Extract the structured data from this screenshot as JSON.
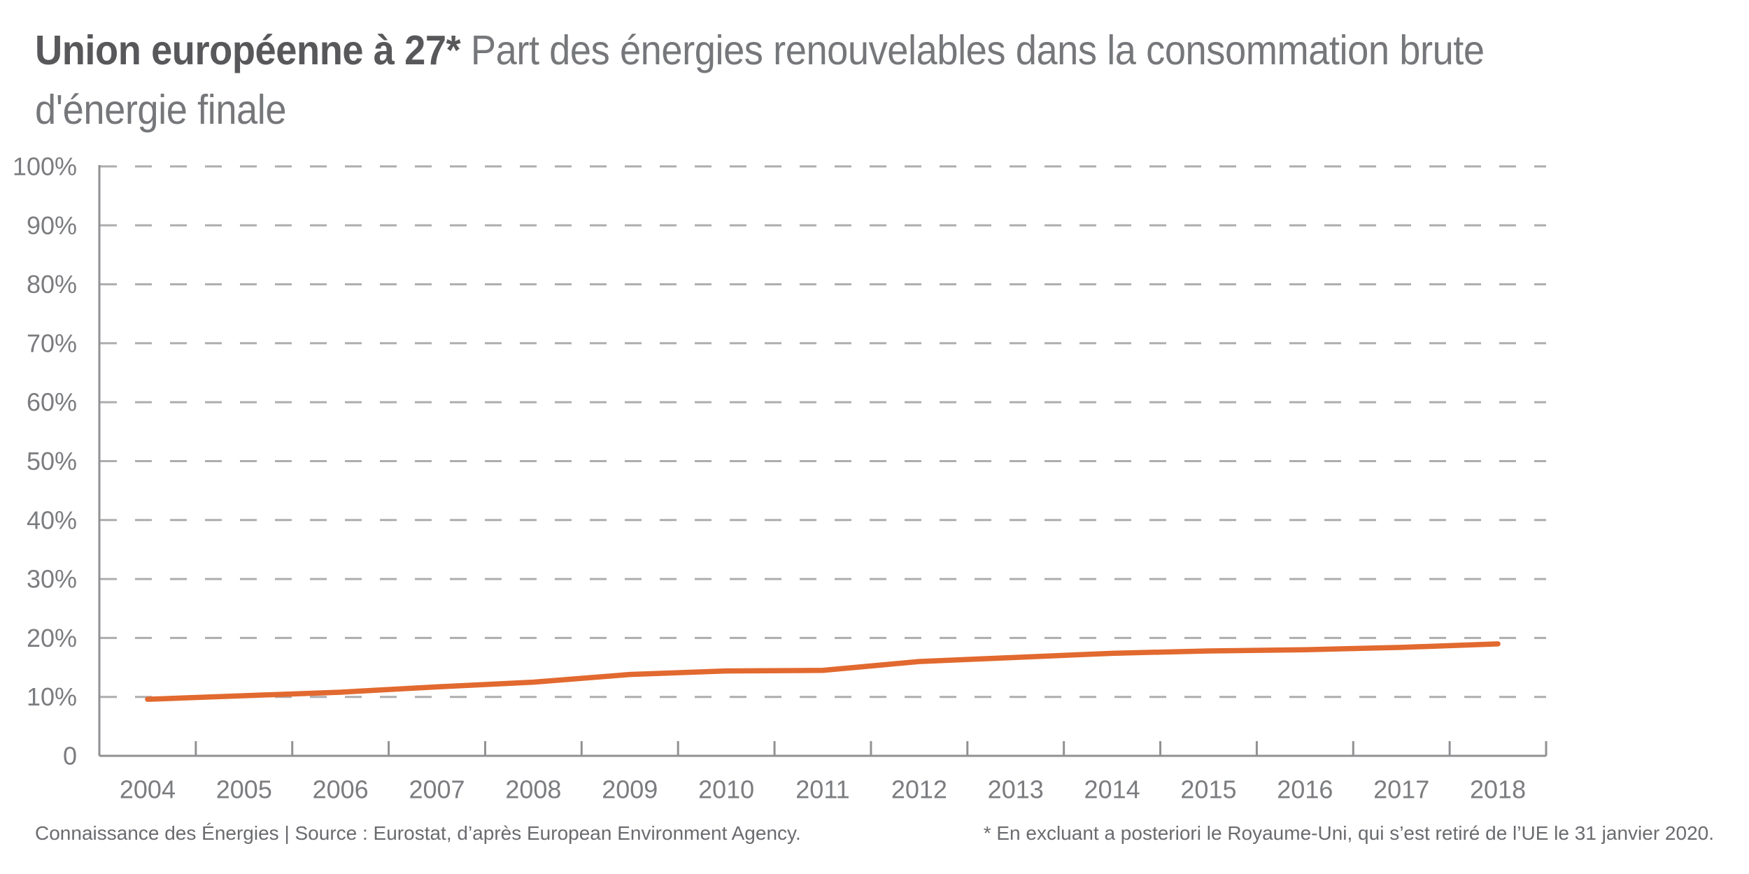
{
  "title": {
    "bold": "Union européenne à 27*",
    "subtitle_line1": "Part des énergies renouvelables dans la consommation brute",
    "subtitle_line2": "d'énergie finale"
  },
  "footer": {
    "source": "Connaissance des Énergies | Source : Eurostat, d’après European Environment Agency.",
    "note": "* En excluant a posteriori le Royaume-Uni, qui s’est retiré de l’UE le 31 janvier 2020."
  },
  "chart_data": {
    "type": "line",
    "title": "Union européenne à 27* Part des énergies renouvelables dans la consommation brute d'énergie finale",
    "categories": [
      "2004",
      "2005",
      "2006",
      "2007",
      "2008",
      "2009",
      "2010",
      "2011",
      "2012",
      "2013",
      "2014",
      "2015",
      "2016",
      "2017",
      "2018"
    ],
    "values": [
      9.6,
      10.2,
      10.8,
      11.7,
      12.5,
      13.8,
      14.4,
      14.5,
      16.0,
      16.7,
      17.4,
      17.8,
      18.0,
      18.4,
      19.0
    ],
    "xlabel": "",
    "ylabel": "",
    "ylim": [
      0,
      100
    ],
    "ytick_labels": [
      "100%",
      "90%",
      "80%",
      "70%",
      "60%",
      "50%",
      "40%",
      "30%",
      "20%",
      "10%",
      "0"
    ],
    "grid": "horizontal-dashed",
    "legend": "none",
    "colors": {
      "line": "#E2692F",
      "axis": "#919194",
      "grid": "#ADADAF",
      "tick_label": "#7B7C7F"
    }
  }
}
